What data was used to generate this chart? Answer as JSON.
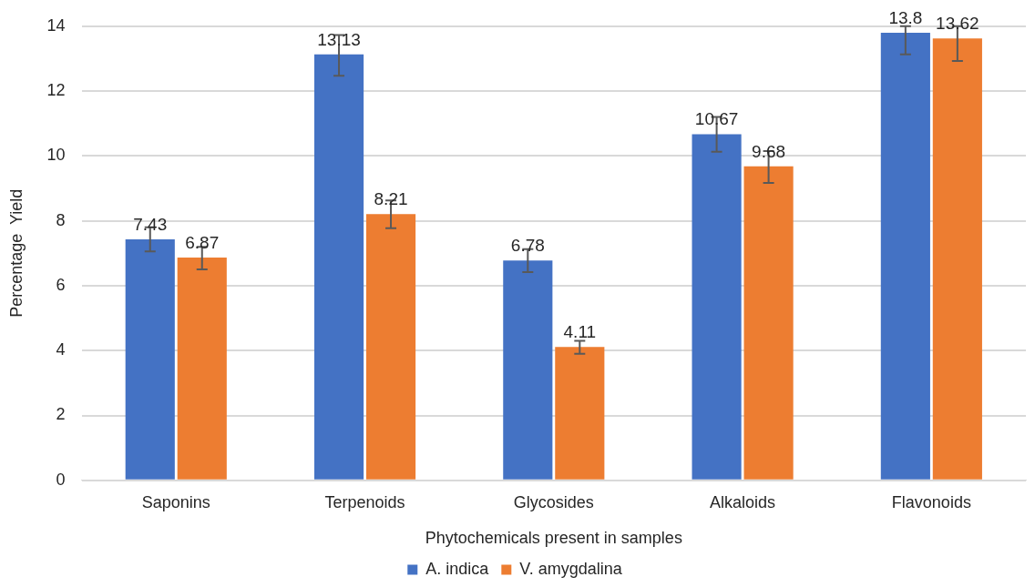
{
  "chart_data": {
    "type": "bar",
    "xlabel": "Phytochemicals present in samples",
    "ylabel": "Percentage  Yield",
    "categories": [
      "Saponins",
      "Terpenoids",
      "Glycosides",
      "Alkaloids",
      "Flavonoids"
    ],
    "series": [
      {
        "name": "A. indica",
        "color": "#4472c4",
        "values": [
          7.43,
          13.13,
          6.78,
          10.67,
          13.8
        ],
        "errors": [
          [
            7.06,
            7.8
          ],
          [
            12.47,
            13.73
          ],
          [
            6.42,
            7.13
          ],
          [
            10.13,
            11.2
          ],
          [
            13.13,
            14
          ]
        ]
      },
      {
        "name": "V. amygdalina",
        "color": "#ed7d31",
        "values": [
          6.87,
          8.21,
          4.11,
          9.68,
          13.62
        ],
        "errors": [
          [
            6.5,
            7.2
          ],
          [
            7.77,
            8.63
          ],
          [
            3.9,
            4.3
          ],
          [
            9.17,
            10.15
          ],
          [
            12.93,
            14
          ]
        ]
      }
    ],
    "ylim": [
      0,
      14
    ],
    "yticks": [
      0,
      2,
      4,
      6,
      8,
      10,
      12,
      14
    ],
    "grid": "y",
    "legend": "bottom",
    "data_labels": true
  }
}
